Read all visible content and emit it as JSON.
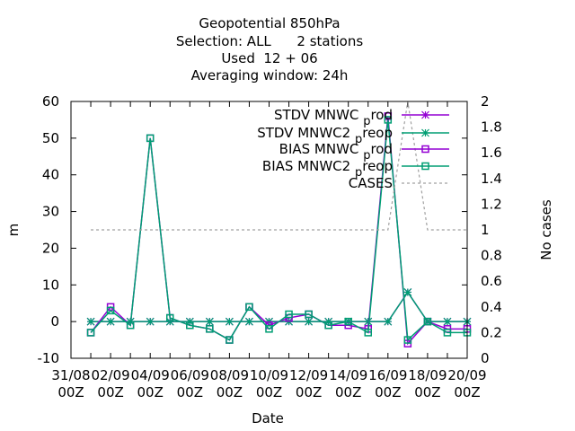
{
  "chart_data": {
    "type": "line",
    "title": [
      "Geopotential 850hPa",
      "Selection: ALL      2 stations",
      "Used  12 + 06",
      "Averaging window: 24h"
    ],
    "xlabel": "Date",
    "ylabel": "m",
    "y2label": "No cases",
    "ylim": [
      -10,
      60
    ],
    "y2lim": [
      0,
      2
    ],
    "xlim": [
      "31/08 00Z",
      "20/09 00Z"
    ],
    "xticks": [
      "31/08\n00Z",
      "02/09\n00Z",
      "04/09\n00Z",
      "06/09\n00Z",
      "08/09\n00Z",
      "10/09\n00Z",
      "12/09\n00Z",
      "14/09\n00Z",
      "16/09\n00Z",
      "18/09\n00Z",
      "20/09\n00Z"
    ],
    "yticks": [
      -10,
      0,
      10,
      20,
      30,
      40,
      50,
      60
    ],
    "y2ticks": [
      0,
      0.2,
      0.4,
      0.6,
      0.8,
      1,
      1.2,
      1.4,
      1.6,
      1.8,
      2
    ],
    "grid": false,
    "legend_position": "top-right",
    "x": [
      "01/09 00Z",
      "02/09 00Z",
      "03/09 00Z",
      "04/09 00Z",
      "05/09 00Z",
      "06/09 00Z",
      "07/09 00Z",
      "08/09 00Z",
      "09/09 00Z",
      "10/09 00Z",
      "11/09 00Z",
      "12/09 00Z",
      "13/09 00Z",
      "14/09 00Z",
      "15/09 00Z",
      "16/09 00Z",
      "17/09 00Z",
      "18/09 00Z",
      "19/09 00Z",
      "20/09 00Z"
    ],
    "series": [
      {
        "name": "STDV MNWC_prod",
        "color": "#9400d3",
        "marker": "star",
        "axis": "y1",
        "values": [
          0,
          0,
          0,
          0,
          0,
          0,
          0,
          0,
          0,
          0,
          0,
          0,
          0,
          0,
          0,
          0,
          8,
          0,
          0,
          0
        ]
      },
      {
        "name": "STDV MNWC2_preop",
        "color": "#009e73",
        "marker": "star",
        "axis": "y1",
        "values": [
          0,
          0,
          0,
          0,
          0,
          0,
          0,
          0,
          0,
          0,
          0,
          0,
          0,
          0,
          0,
          0,
          8,
          0,
          0,
          0
        ]
      },
      {
        "name": "BIAS MNWC_prod",
        "color": "#9400d3",
        "marker": "square",
        "axis": "y1",
        "values": [
          -3,
          4,
          -1,
          50,
          1,
          -1,
          -2,
          -5,
          4,
          -1,
          1,
          2,
          -1,
          -1,
          -2,
          56,
          -6,
          0,
          -2,
          -2
        ]
      },
      {
        "name": "BIAS MNWC2_preop",
        "color": "#009e73",
        "marker": "square",
        "axis": "y1",
        "values": [
          -3,
          3,
          -1,
          50,
          1,
          -1,
          -2,
          -5,
          4,
          -2,
          2,
          2,
          -1,
          0,
          -3,
          55,
          -5,
          0,
          -3,
          -3
        ]
      },
      {
        "name": "CASES",
        "color": "#a0a0a0",
        "marker": "none",
        "dash": true,
        "axis": "y2",
        "values": [
          1,
          1,
          1,
          1,
          1,
          1,
          1,
          1,
          1,
          1,
          1,
          1,
          1,
          1,
          1,
          1,
          2,
          1,
          1,
          1
        ]
      }
    ]
  }
}
